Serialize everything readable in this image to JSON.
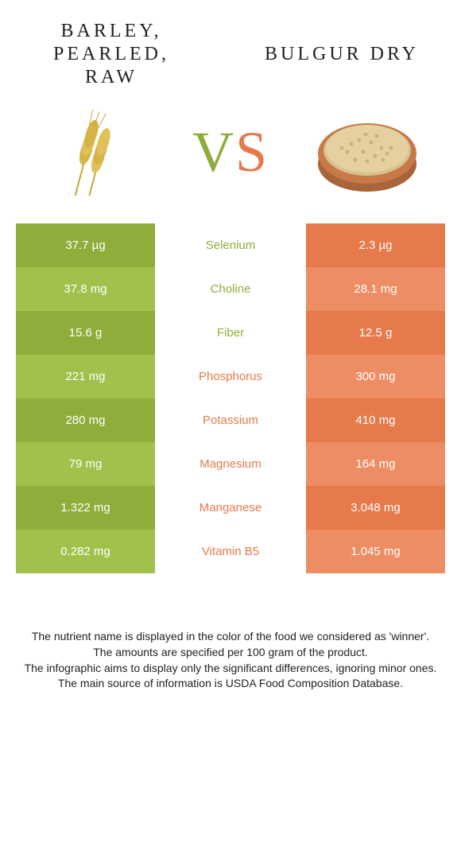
{
  "title_left": "Barley, pearled, raw",
  "title_right": "Bulgur dry",
  "vs_v": "V",
  "vs_s": "S",
  "colors": {
    "green_dark": "#8fad3a",
    "green_light": "#a1c14d",
    "orange_dark": "#e67a4a",
    "orange_light": "#ec8d63",
    "background": "#ffffff",
    "text": "#222222"
  },
  "typography": {
    "title_font": "Georgia serif",
    "title_size_pt": 24,
    "title_letter_spacing": 4,
    "vs_size_pt": 72,
    "table_font_size_pt": 15,
    "footer_font_size_pt": 14
  },
  "rows": [
    {
      "left": "37.7 µg",
      "mid": "Selenium",
      "right": "2.3 µg",
      "winner": "left"
    },
    {
      "left": "37.8 mg",
      "mid": "Choline",
      "right": "28.1 mg",
      "winner": "left"
    },
    {
      "left": "15.6 g",
      "mid": "Fiber",
      "right": "12.5 g",
      "winner": "left"
    },
    {
      "left": "221 mg",
      "mid": "Phosphorus",
      "right": "300 mg",
      "winner": "right"
    },
    {
      "left": "280 mg",
      "mid": "Potassium",
      "right": "410 mg",
      "winner": "right"
    },
    {
      "left": "79 mg",
      "mid": "Magnesium",
      "right": "164 mg",
      "winner": "right"
    },
    {
      "left": "1.322 mg",
      "mid": "Manganese",
      "right": "3.048 mg",
      "winner": "right"
    },
    {
      "left": "0.282 mg",
      "mid": "Vitamin B5",
      "right": "1.045 mg",
      "winner": "right"
    }
  ],
  "footer_lines": [
    "The nutrient name is displayed in the color of the food we considered as 'winner'.",
    "The amounts are specified per 100 gram of the product.",
    "The infographic aims to display only the significant differences, ignoring minor ones.",
    "The main source of information is USDA Food Composition Database."
  ]
}
